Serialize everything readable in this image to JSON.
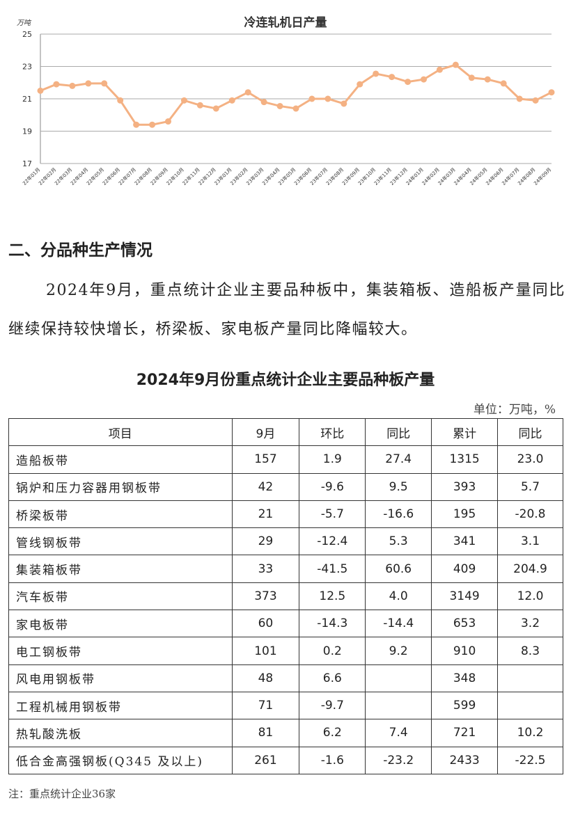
{
  "chart_data": {
    "type": "line",
    "title": "冷连轧机日产量",
    "y_label": "万吨",
    "categories": [
      "22年01月",
      "22年02月",
      "22年03月",
      "22年04月",
      "22年05月",
      "22年06月",
      "22年07月",
      "22年08月",
      "22年09月",
      "22年10月",
      "22年11月",
      "22年12月",
      "23年01月",
      "23年02月",
      "23年03月",
      "23年04月",
      "23年05月",
      "23年06月",
      "23年07月",
      "23年08月",
      "23年09月",
      "23年10月",
      "23年11月",
      "23年12月",
      "24年01月",
      "24年02月",
      "24年03月",
      "24年04月",
      "24年05月",
      "24年06月",
      "24年07月",
      "24年08月",
      "24年09月"
    ],
    "values": [
      21.5,
      21.9,
      21.8,
      21.95,
      21.95,
      20.9,
      19.4,
      19.4,
      19.6,
      20.9,
      20.6,
      20.4,
      20.9,
      21.4,
      20.8,
      20.55,
      20.4,
      21.0,
      21.0,
      20.7,
      21.9,
      22.55,
      22.35,
      22.05,
      22.2,
      22.8,
      23.1,
      22.3,
      22.2,
      21.95,
      21.0,
      20.9,
      21.4
    ],
    "color": "#f4b183",
    "ylim": [
      17,
      25
    ],
    "yticks": [
      17,
      19,
      21,
      23,
      25
    ],
    "grid": true
  },
  "section": {
    "heading": "二、分品种生产情况",
    "paragraph": "2024年9月，重点统计企业主要品种板中，集装箱板、造船板产量同比继续保持较快增长，桥梁板、家电板产量同比降幅较大。"
  },
  "table": {
    "title": "2024年9月份重点统计企业主要品种板产量",
    "unit": "单位：万吨，%",
    "header": [
      "项目",
      "9月",
      "环比",
      "同比",
      "累计",
      "同比"
    ],
    "rows": [
      [
        "造船板带",
        "157",
        "1.9",
        "27.4",
        "1315",
        "23.0"
      ],
      [
        "锅炉和压力容器用钢板带",
        "42",
        "-9.6",
        "9.5",
        "393",
        "5.7"
      ],
      [
        "桥梁板带",
        "21",
        "-5.7",
        "-16.6",
        "195",
        "-20.8"
      ],
      [
        "管线钢板带",
        "29",
        "-12.4",
        "5.3",
        "341",
        "3.1"
      ],
      [
        "集装箱板带",
        "33",
        "-41.5",
        "60.6",
        "409",
        "204.9"
      ],
      [
        "汽车板带",
        "373",
        "12.5",
        "4.0",
        "3149",
        "12.0"
      ],
      [
        "家电板带",
        "60",
        "-14.3",
        "-14.4",
        "653",
        "3.2"
      ],
      [
        "电工钢板带",
        "101",
        "0.2",
        "9.2",
        "910",
        "8.3"
      ],
      [
        "风电用钢板带",
        "48",
        "6.6",
        null,
        "348",
        null
      ],
      [
        "工程机械用钢板带",
        "71",
        "-9.7",
        null,
        "599",
        null
      ],
      [
        "热轧酸洗板",
        "81",
        "6.2",
        "7.4",
        "721",
        "10.2"
      ],
      [
        "低合金高强钢板(Q345 及以上)",
        "261",
        "-1.6",
        "-23.2",
        "2433",
        "-22.5"
      ]
    ],
    "note": "注：重点统计企业36家"
  }
}
